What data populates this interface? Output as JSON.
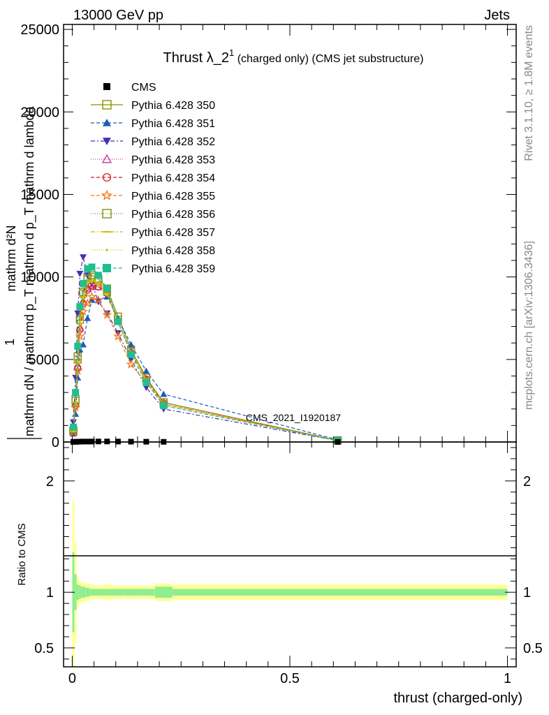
{
  "header": {
    "left": "13000 GeV pp",
    "right": "Jets"
  },
  "side_labels": {
    "rivet": "Rivet 3.1.10, ≥ 1.8M events",
    "mcplots": "mcplots.cern.ch [arXiv:1306.3436]"
  },
  "watermark": "CMS_2021_I1920187",
  "chart_data": [
    {
      "type": "line",
      "title_main": "Thrust λ_2",
      "title_sup": "1",
      "title_rest": " (charged only) (CMS jet substructure)",
      "ylabel_num": "1",
      "ylabel_den": "mathrm dN / mathrmd p_T mathrm d p_T mathrm d lambda",
      "ylabel_extra": "mathrm d²N",
      "xlim": [
        -0.02,
        1.02
      ],
      "ylim": [
        0,
        25300
      ],
      "yticks": [
        0,
        5000,
        10000,
        15000,
        20000,
        25000
      ],
      "ytick_labels": [
        "0",
        "5000",
        "10000",
        "15000",
        "20000",
        "25000"
      ],
      "x": [
        0.0025,
        0.0075,
        0.0125,
        0.0175,
        0.025,
        0.035,
        0.045,
        0.06,
        0.08,
        0.105,
        0.135,
        0.17,
        0.21,
        0.61
      ],
      "series": [
        {
          "name": "CMS",
          "color": "#000000",
          "marker": "square-filled",
          "dash": "",
          "values": [
            5,
            10,
            15,
            20,
            25,
            25,
            25,
            30,
            30,
            25,
            20,
            15,
            10,
            3
          ]
        },
        {
          "name": "Pythia 6.428 350",
          "color": "#8a8f00",
          "marker": "square-open",
          "dash": "",
          "values": [
            700,
            2600,
            5200,
            7600,
            9100,
            10000,
            10100,
            9900,
            9300,
            7600,
            5600,
            3900,
            2400,
            100
          ]
        },
        {
          "name": "Pythia 6.428 351",
          "color": "#1f5bb8",
          "marker": "triangle-up-filled",
          "dash": "5,3",
          "values": [
            500,
            1700,
            3900,
            5600,
            5900,
            7500,
            8600,
            8600,
            8800,
            7500,
            5900,
            4300,
            2900,
            130
          ]
        },
        {
          "name": "Pythia 6.428 352",
          "color": "#4b2bb0",
          "marker": "triangle-down-filled",
          "dash": "6,3,2,3",
          "values": [
            1200,
            3900,
            7800,
            10200,
            11200,
            10100,
            9600,
            8500,
            7800,
            6600,
            5000,
            3300,
            2000,
            80
          ]
        },
        {
          "name": "Pythia 6.428 353",
          "color": "#c4379b",
          "marker": "triangle-up-open",
          "dash": "1,2",
          "values": [
            600,
            2300,
            4600,
            6900,
            8500,
            9300,
            9400,
            9400,
            9200,
            7300,
            5500,
            3800,
            2400,
            90
          ]
        },
        {
          "name": "Pythia 6.428 354",
          "color": "#d7191c",
          "marker": "circle-open",
          "dash": "5,3",
          "values": [
            600,
            2200,
            4500,
            6800,
            8400,
            9200,
            9500,
            9400,
            9000,
            7300,
            5400,
            3800,
            2300,
            90
          ]
        },
        {
          "name": "Pythia 6.428 355",
          "color": "#f27b1c",
          "marker": "star",
          "dash": "5,3",
          "values": [
            600,
            2100,
            4300,
            6400,
            7900,
            8400,
            8800,
            8600,
            7700,
            6400,
            4700,
            3600,
            2300,
            90
          ]
        },
        {
          "name": "Pythia 6.428 356",
          "color": "#7f8f1a",
          "marker": "square-open",
          "dash": "1,2",
          "values": [
            700,
            2500,
            5000,
            7400,
            9000,
            9900,
            10000,
            9800,
            9100,
            7400,
            5500,
            3900,
            2300,
            90
          ]
        },
        {
          "name": "Pythia 6.428 357",
          "color": "#d4b800",
          "marker": "dash",
          "dash": "6,3,2,3",
          "values": [
            650,
            2400,
            4900,
            7200,
            8800,
            9700,
            9800,
            9600,
            9000,
            7300,
            5400,
            3800,
            2300,
            90
          ]
        },
        {
          "name": "Pythia 6.428 358",
          "color": "#b8d400",
          "marker": "dot",
          "dash": "1,2",
          "values": [
            640,
            2350,
            4800,
            7100,
            8700,
            9600,
            9700,
            9500,
            8900,
            7200,
            5400,
            3700,
            2200,
            90
          ]
        },
        {
          "name": "Pythia 6.428 359",
          "color": "#1fbf8f",
          "marker": "square-filled",
          "dash": "5,3",
          "values": [
            900,
            3000,
            5800,
            8200,
            9600,
            10500,
            10600,
            10100,
            9300,
            7300,
            5300,
            3600,
            2200,
            80
          ]
        }
      ]
    },
    {
      "type": "area",
      "ylabel": "Ratio to CMS",
      "xlabel": "thrust (charged-only)",
      "xlim": [
        -0.02,
        1.02
      ],
      "ylim": [
        0.33,
        2.35
      ],
      "yticks": [
        0.5,
        1,
        2
      ],
      "ytick_labels": [
        "0.5",
        "1",
        "2"
      ],
      "xticks": [
        0,
        0.5,
        1
      ],
      "xtick_labels": [
        "0",
        "0.5",
        "1"
      ],
      "bins": [
        0,
        0.005,
        0.01,
        0.015,
        0.02,
        0.03,
        0.04,
        0.05,
        0.07,
        0.09,
        0.12,
        0.15,
        0.19,
        0.23,
        1.0
      ],
      "inner_band_halfwidth": [
        0.36,
        0.16,
        0.07,
        0.06,
        0.05,
        0.04,
        0.03,
        0.03,
        0.03,
        0.03,
        0.03,
        0.03,
        0.05,
        0.03
      ],
      "outer_band_halfwidth": [
        0.82,
        0.45,
        0.14,
        0.1,
        0.09,
        0.08,
        0.07,
        0.06,
        0.07,
        0.06,
        0.06,
        0.06,
        0.08,
        0.07
      ],
      "inner_color": "#90ee90",
      "outer_color": "#ffff99"
    }
  ]
}
